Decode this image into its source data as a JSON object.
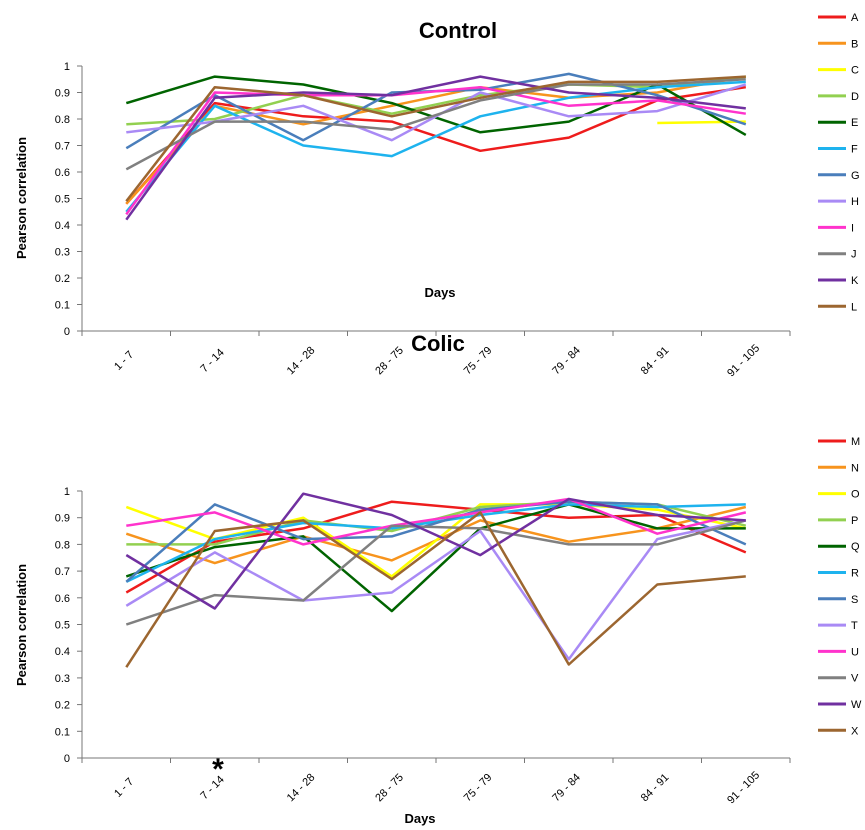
{
  "chart_data": [
    {
      "type": "line",
      "title": "Control",
      "xlabel": "Days",
      "ylabel": "Pearson correlation",
      "ylim": [
        0,
        1
      ],
      "yticks": [
        "0",
        "0.1",
        "0.2",
        "0.3",
        "0.4",
        "0.5",
        "0.6",
        "0.7",
        "0.8",
        "0.9",
        "1"
      ],
      "categories": [
        "1 - 7",
        "7 - 14",
        "14 - 28",
        "28 - 75",
        "75 - 79",
        "79 - 84",
        "84 - 91",
        "91 - 105"
      ],
      "legend_position": "right",
      "series": [
        {
          "name": "A",
          "color": "#ee1c1c",
          "values": [
            0.48,
            0.86,
            0.81,
            0.79,
            0.68,
            0.73,
            0.87,
            0.92
          ]
        },
        {
          "name": "B",
          "color": "#f7941d",
          "values": [
            0.48,
            0.85,
            0.78,
            0.85,
            0.92,
            0.88,
            0.9,
            0.96
          ]
        },
        {
          "name": "C",
          "color": "#ffff00",
          "values": [
            null,
            null,
            null,
            null,
            null,
            null,
            0.785,
            0.79
          ]
        },
        {
          "name": "D",
          "color": "#92d050",
          "values": [
            0.78,
            0.8,
            0.89,
            0.82,
            0.89,
            0.93,
            0.92,
            0.96
          ]
        },
        {
          "name": "E",
          "color": "#006400",
          "values": [
            0.86,
            0.96,
            0.93,
            0.86,
            0.75,
            0.79,
            0.93,
            0.74
          ]
        },
        {
          "name": "F",
          "color": "#1eb3ee",
          "values": [
            0.45,
            0.85,
            0.7,
            0.66,
            0.81,
            0.88,
            0.92,
            0.94
          ]
        },
        {
          "name": "G",
          "color": "#4a7ebb",
          "values": [
            0.69,
            0.89,
            0.72,
            0.9,
            0.91,
            0.97,
            0.89,
            0.78
          ]
        },
        {
          "name": "H",
          "color": "#a98af5",
          "values": [
            0.75,
            0.79,
            0.85,
            0.72,
            0.9,
            0.81,
            0.83,
            0.93
          ]
        },
        {
          "name": "I",
          "color": "#ff33cc",
          "values": [
            0.44,
            0.9,
            0.89,
            0.89,
            0.92,
            0.85,
            0.87,
            0.82
          ]
        },
        {
          "name": "J",
          "color": "#808080",
          "values": [
            0.61,
            0.79,
            0.79,
            0.76,
            0.87,
            0.93,
            0.93,
            0.95
          ]
        },
        {
          "name": "K",
          "color": "#7030a0",
          "values": [
            0.42,
            0.88,
            0.9,
            0.89,
            0.96,
            0.9,
            0.88,
            0.84
          ]
        },
        {
          "name": "L",
          "color": "#9c6630",
          "values": [
            0.49,
            0.92,
            0.89,
            0.81,
            0.88,
            0.94,
            0.94,
            0.96
          ]
        }
      ]
    },
    {
      "type": "line",
      "title": "Colic",
      "xlabel": "Days",
      "ylabel": "Pearson correlation",
      "ylim": [
        0,
        1
      ],
      "yticks": [
        "0",
        "0.1",
        "0.2",
        "0.3",
        "0.4",
        "0.5",
        "0.6",
        "0.7",
        "0.8",
        "0.9",
        "1"
      ],
      "categories": [
        "1 - 7",
        "7 - 14",
        "14 - 28",
        "28 - 75",
        "75 - 79",
        "79 - 84",
        "84 - 91",
        "91 - 105"
      ],
      "legend_position": "right",
      "annotation": "*",
      "series": [
        {
          "name": "M",
          "color": "#ee1c1c",
          "values": [
            0.62,
            0.81,
            0.86,
            0.96,
            0.93,
            0.9,
            0.91,
            0.77
          ]
        },
        {
          "name": "N",
          "color": "#f7941d",
          "values": [
            0.84,
            0.73,
            0.83,
            0.74,
            0.89,
            0.81,
            0.86,
            0.94
          ]
        },
        {
          "name": "O",
          "color": "#ffff00",
          "values": [
            0.94,
            0.82,
            0.9,
            0.68,
            0.95,
            0.95,
            0.93,
            0.86
          ]
        },
        {
          "name": "P",
          "color": "#92d050",
          "values": [
            0.8,
            0.8,
            0.89,
            0.85,
            0.94,
            0.96,
            0.95,
            0.87
          ]
        },
        {
          "name": "Q",
          "color": "#006400",
          "values": [
            0.68,
            0.79,
            0.83,
            0.55,
            0.86,
            0.95,
            0.86,
            0.86
          ]
        },
        {
          "name": "R",
          "color": "#1eb3ee",
          "values": [
            0.66,
            0.82,
            0.88,
            0.86,
            0.91,
            0.95,
            0.94,
            0.95
          ]
        },
        {
          "name": "S",
          "color": "#4a7ebb",
          "values": [
            0.66,
            0.95,
            0.82,
            0.83,
            0.93,
            0.96,
            0.95,
            0.8
          ]
        },
        {
          "name": "T",
          "color": "#a98af5",
          "values": [
            0.57,
            0.77,
            0.59,
            0.62,
            0.85,
            0.37,
            0.82,
            0.89
          ]
        },
        {
          "name": "U",
          "color": "#ff33cc",
          "values": [
            0.87,
            0.92,
            0.8,
            0.87,
            0.92,
            0.97,
            0.84,
            0.92
          ]
        },
        {
          "name": "V",
          "color": "#808080",
          "values": [
            0.5,
            0.61,
            0.59,
            0.87,
            0.86,
            0.8,
            0.8,
            0.89
          ]
        },
        {
          "name": "W",
          "color": "#7030a0",
          "values": [
            0.76,
            0.56,
            0.99,
            0.91,
            0.76,
            0.97,
            0.91,
            0.89
          ]
        },
        {
          "name": "X",
          "color": "#9c6630",
          "values": [
            0.34,
            0.85,
            0.89,
            0.67,
            0.92,
            0.35,
            0.65,
            0.68
          ]
        }
      ]
    }
  ]
}
